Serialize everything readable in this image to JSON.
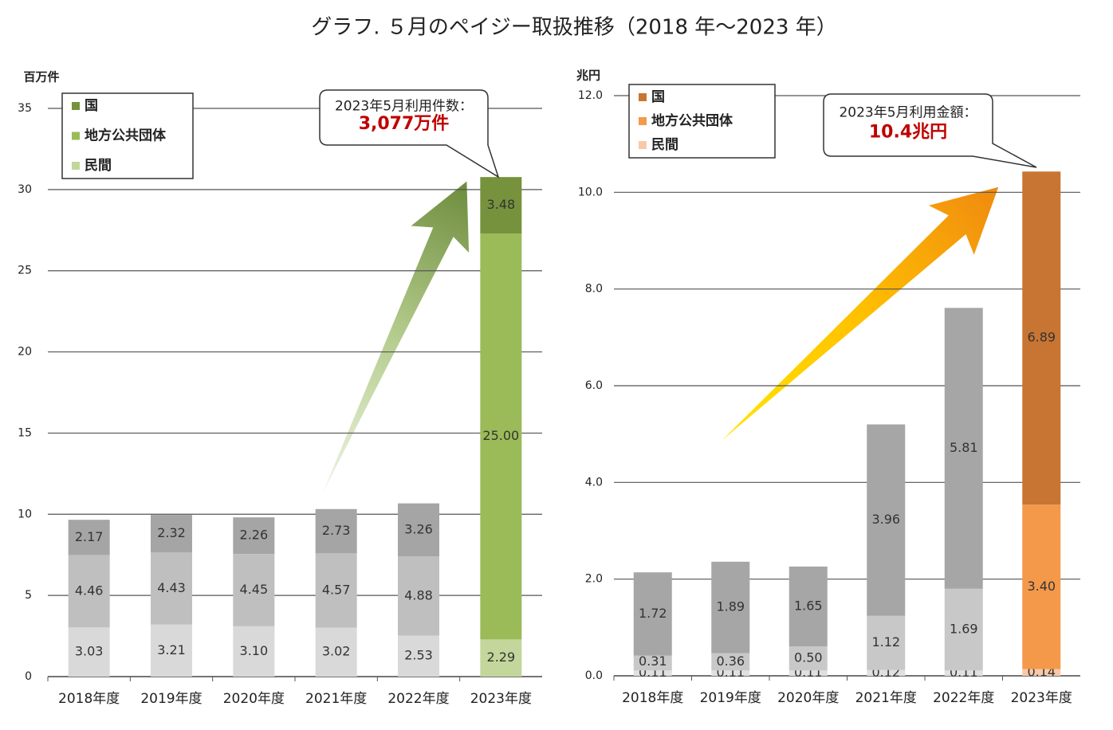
{
  "title": "グラフ. ５月のペイジー取扱推移（2018 年～2023 年）",
  "chart_data": [
    {
      "type": "bar",
      "stacked": true,
      "y_label": "百万件",
      "categories": [
        "2018年度",
        "2019年度",
        "2020年度",
        "2021年度",
        "2022年度",
        "2023年度"
      ],
      "ylim": [
        0,
        35
      ],
      "yticks": [
        0,
        5,
        10,
        15,
        20,
        25,
        30,
        35
      ],
      "grid": true,
      "legend": "top-left",
      "annotations": [
        "2023年5月利用件数：",
        "3,077万件"
      ],
      "series": [
        {
          "name": "民間",
          "color": "#c3d69b",
          "colors": [
            "#d9d9d9",
            "#d9d9d9",
            "#d9d9d9",
            "#d9d9d9",
            "#d9d9d9",
            "#c3d69b"
          ],
          "values": [
            3.03,
            3.21,
            3.1,
            3.02,
            2.53,
            2.29
          ],
          "value_labels": [
            "3.03",
            "3.21",
            "3.10",
            "3.02",
            "2.53",
            "2.29"
          ]
        },
        {
          "name": "地方公共団体",
          "color": "#9bbb59",
          "colors": [
            "#bfbfbf",
            "#bfbfbf",
            "#bfbfbf",
            "#bfbfbf",
            "#bfbfbf",
            "#9bbb59"
          ],
          "values": [
            4.46,
            4.43,
            4.45,
            4.57,
            4.88,
            25.0
          ],
          "value_labels": [
            "4.46",
            "4.43",
            "4.45",
            "4.57",
            "4.88",
            "25.00"
          ]
        },
        {
          "name": "国",
          "color": "#76923c",
          "colors": [
            "#a5a5a5",
            "#a5a5a5",
            "#a5a5a5",
            "#a5a5a5",
            "#a5a5a5",
            "#76923c"
          ],
          "values": [
            2.17,
            2.32,
            2.26,
            2.73,
            3.26,
            3.48
          ],
          "value_labels": [
            "2.17",
            "2.32",
            "2.26",
            "2.73",
            "3.26",
            "3.48"
          ]
        }
      ]
    },
    {
      "type": "bar",
      "stacked": true,
      "y_label": "兆円",
      "categories": [
        "2018年度",
        "2019年度",
        "2020年度",
        "2021年度",
        "2022年度",
        "2023年度"
      ],
      "ylim": [
        0,
        12
      ],
      "yticks": [
        {
          "value": 0,
          "label": "0.0"
        },
        {
          "value": 2,
          "label": "2.0"
        },
        {
          "value": 4,
          "label": "4.0"
        },
        {
          "value": 6,
          "label": "6.0"
        },
        {
          "value": 8,
          "label": "8.0"
        },
        {
          "value": 10,
          "label": "10.0"
        },
        {
          "value": 12,
          "label": "12.0"
        }
      ],
      "grid": true,
      "legend": "top-left",
      "annotations": [
        "2023年5月利用金額：",
        "10.4兆円"
      ],
      "series": [
        {
          "name": "民間",
          "color": "#f8c9a8",
          "colors": [
            "#e0e0e0",
            "#e0e0e0",
            "#e0e0e0",
            "#e0e0e0",
            "#e0e0e0",
            "#f8c9a8"
          ],
          "values": [
            0.11,
            0.11,
            0.11,
            0.12,
            0.11,
            0.14
          ],
          "value_labels": [
            "0.11",
            "0.11",
            "0.11",
            "0.12",
            "0.11",
            "0.14"
          ]
        },
        {
          "name": "地方公共団体",
          "color": "#f4994a",
          "colors": [
            "#c8c8c8",
            "#c8c8c8",
            "#c8c8c8",
            "#c8c8c8",
            "#c8c8c8",
            "#f4994a"
          ],
          "values": [
            0.31,
            0.36,
            0.5,
            1.12,
            1.69,
            3.4
          ],
          "value_labels": [
            "0.31",
            "0.36",
            "0.50",
            "1.12",
            "1.69",
            "3.40"
          ]
        },
        {
          "name": "国",
          "color": "#c87533",
          "colors": [
            "#a6a6a6",
            "#a6a6a6",
            "#a6a6a6",
            "#a6a6a6",
            "#a6a6a6",
            "#c87533"
          ],
          "values": [
            1.72,
            1.89,
            1.65,
            3.96,
            5.81,
            6.89
          ],
          "value_labels": [
            "1.72",
            "1.89",
            "1.65",
            "3.96",
            "5.81",
            "6.89"
          ]
        }
      ]
    }
  ]
}
